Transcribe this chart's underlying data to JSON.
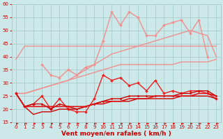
{
  "x": [
    0,
    1,
    2,
    3,
    4,
    5,
    6,
    7,
    8,
    9,
    10,
    11,
    12,
    13,
    14,
    15,
    16,
    17,
    18,
    19,
    20,
    21,
    22,
    23
  ],
  "background_color": "#cce8e8",
  "grid_color": "#aacccc",
  "xlabel": "Vent moyen/en rafales ( km/h )",
  "xlabel_color": "#cc0000",
  "series": [
    {
      "name": "flat_top_line",
      "color": "#f09090",
      "lw": 1.0,
      "marker": null,
      "data": [
        39,
        44,
        44,
        44,
        44,
        44,
        44,
        44,
        44,
        44,
        44,
        44,
        44,
        44,
        44,
        44,
        44,
        44,
        44,
        44,
        44,
        44,
        44,
        44
      ]
    },
    {
      "name": "rising_line_top",
      "color": "#f09090",
      "lw": 1.0,
      "marker": null,
      "data": [
        26,
        26,
        27,
        28,
        29,
        30,
        31,
        33,
        35,
        37,
        39,
        41,
        42,
        43,
        44,
        45,
        46,
        47,
        48,
        49,
        50,
        49,
        48,
        40
      ]
    },
    {
      "name": "peaked_line",
      "color": "#f09090",
      "lw": 1.0,
      "marker": "D",
      "markersize": 2.0,
      "data": [
        null,
        null,
        null,
        37,
        33,
        32,
        35,
        33,
        36,
        37,
        46,
        57,
        52,
        57,
        55,
        48,
        48,
        52,
        53,
        54,
        49,
        54,
        40,
        null
      ]
    },
    {
      "name": "lower_flat",
      "color": "#f09090",
      "lw": 1.0,
      "marker": null,
      "data": [
        26,
        26,
        27,
        28,
        29,
        30,
        31,
        32,
        33,
        34,
        35,
        36,
        37,
        37,
        37,
        37,
        37,
        37,
        37,
        38,
        38,
        38,
        38,
        39
      ]
    },
    {
      "name": "red_peaked",
      "color": "#ee2222",
      "lw": 1.0,
      "marker": "D",
      "markersize": 2.0,
      "data": [
        26,
        21,
        22,
        25,
        20,
        24,
        20,
        19,
        19,
        24,
        33,
        31,
        32,
        29,
        30,
        27,
        31,
        26,
        27,
        26,
        27,
        27,
        26,
        24
      ]
    },
    {
      "name": "red_mid",
      "color": "#cc0000",
      "lw": 1.0,
      "marker": "D",
      "markersize": 1.5,
      "data": [
        26,
        21,
        22,
        22,
        20,
        22,
        21,
        20,
        21,
        22,
        23,
        24,
        24,
        25,
        25,
        25,
        25,
        25,
        25,
        26,
        26,
        27,
        27,
        25
      ]
    },
    {
      "name": "red_low",
      "color": "#cc0000",
      "lw": 1.0,
      "marker": null,
      "data": [
        26,
        21,
        18,
        19,
        19,
        20,
        20,
        20,
        21,
        22,
        23,
        23,
        23,
        23,
        24,
        24,
        24,
        24,
        24,
        25,
        25,
        25,
        25,
        24
      ]
    },
    {
      "name": "red_smooth",
      "color": "#dd1111",
      "lw": 1.2,
      "marker": null,
      "data": [
        26,
        21,
        21,
        21,
        21,
        21,
        21,
        21,
        21,
        22,
        22,
        23,
        23,
        24,
        24,
        24,
        25,
        25,
        25,
        25,
        25,
        26,
        26,
        25
      ]
    }
  ],
  "arrow_data": [
    0,
    1,
    2,
    3,
    4,
    5,
    6,
    7,
    8,
    9,
    10,
    11,
    12,
    13,
    14,
    15,
    16,
    17,
    18,
    19,
    20,
    21,
    22,
    23
  ],
  "ylim": [
    15,
    60
  ],
  "yticks": [
    15,
    20,
    25,
    30,
    35,
    40,
    45,
    50,
    55,
    60
  ],
  "xticks": [
    0,
    1,
    2,
    3,
    4,
    5,
    6,
    7,
    8,
    9,
    10,
    11,
    12,
    13,
    14,
    15,
    16,
    17,
    18,
    19,
    20,
    21,
    22,
    23
  ],
  "tick_fontsize": 5,
  "xlabel_fontsize": 6.5,
  "arrow_color": "#cc0000"
}
